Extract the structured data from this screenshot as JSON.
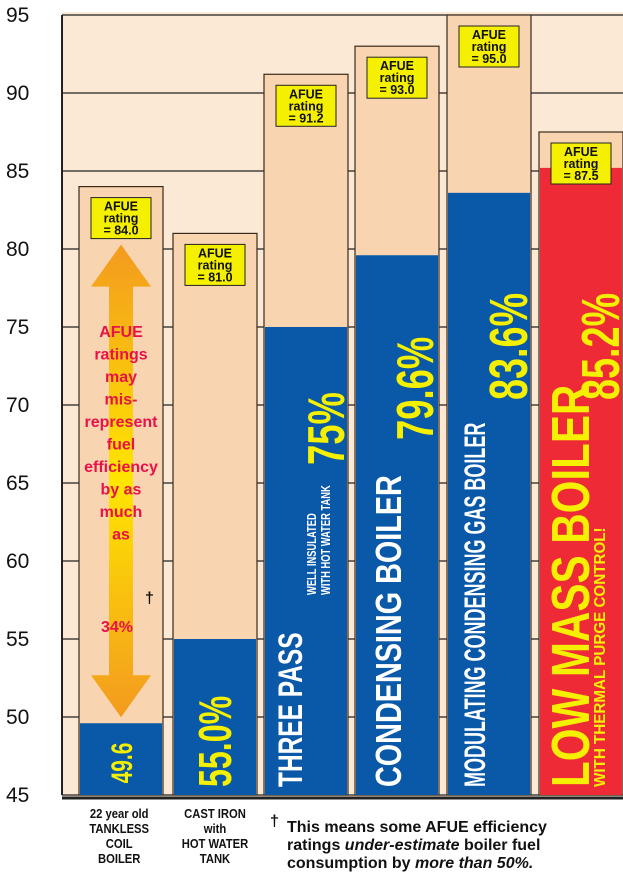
{
  "chart_data": {
    "type": "bar",
    "ylim": [
      45,
      95
    ],
    "yticks": [
      45,
      50,
      55,
      60,
      65,
      70,
      75,
      80,
      85,
      90,
      95
    ],
    "grid": true,
    "colors": {
      "background": "#fbe9d6",
      "afue_fill": "#f9d4b0",
      "efficiency_blue": "#0a58a8",
      "low_mass_red": "#ee2a36",
      "label_yellow": "#f5f000",
      "arrow_orange": "#f39a1f",
      "callout_pink": "#e8114a"
    },
    "categories": [
      {
        "xlabel": [
          "22 year old",
          "TANKLESS",
          "COIL",
          "BOILER"
        ],
        "afue_rating": 84.0,
        "afue_label": [
          "AFUE",
          "rating",
          "= 84.0"
        ],
        "efficiency": 49.6,
        "value_label": "49.6",
        "bar_text": ""
      },
      {
        "xlabel": [
          "CAST IRON",
          "with",
          "HOT WATER",
          "TANK"
        ],
        "afue_rating": 81.0,
        "afue_label": [
          "AFUE",
          "rating",
          "= 81.0"
        ],
        "efficiency": 55.0,
        "value_label": "55.0%",
        "bar_text": ""
      },
      {
        "xlabel": [],
        "afue_rating": 91.2,
        "afue_label": [
          "AFUE",
          "rating",
          "= 91.2"
        ],
        "efficiency": 75.0,
        "value_label": "75%",
        "bar_text": "THREE PASS",
        "bar_subtext": [
          "WELL INSULATED",
          "WITH HOT WATER TANK"
        ]
      },
      {
        "xlabel": [],
        "afue_rating": 93.0,
        "afue_label": [
          "AFUE",
          "rating",
          "= 93.0"
        ],
        "efficiency": 79.6,
        "value_label": "79.6%",
        "bar_text": "CONDENSING BOILER"
      },
      {
        "xlabel": [],
        "afue_rating": 95.0,
        "afue_label": [
          "AFUE",
          "rating",
          "= 95.0"
        ],
        "efficiency": 83.6,
        "value_label": "83.6%",
        "bar_text": "MODULATING CONDENSING GAS BOILER"
      },
      {
        "xlabel": [],
        "afue_rating": 87.5,
        "afue_label": [
          "AFUE",
          "rating",
          "= 87.5"
        ],
        "efficiency": 85.2,
        "value_label": "85.2%",
        "bar_text": "LOW MASS BOILER",
        "bar_subtext": [
          "WITH THERMAL PURGE CONTROL!"
        ]
      }
    ],
    "callout": {
      "lines": [
        "AFUE",
        "ratings",
        "may",
        "mis-",
        "represent",
        "fuel",
        "efficiency",
        "by as",
        "much",
        "as"
      ],
      "big_value": "34%",
      "dagger": "†"
    },
    "footnote": {
      "dagger": "†",
      "lines": [
        "This means some AFUE efficiency",
        "ratings under-estimate boiler fuel",
        "consumption by more than 50%."
      ]
    }
  }
}
